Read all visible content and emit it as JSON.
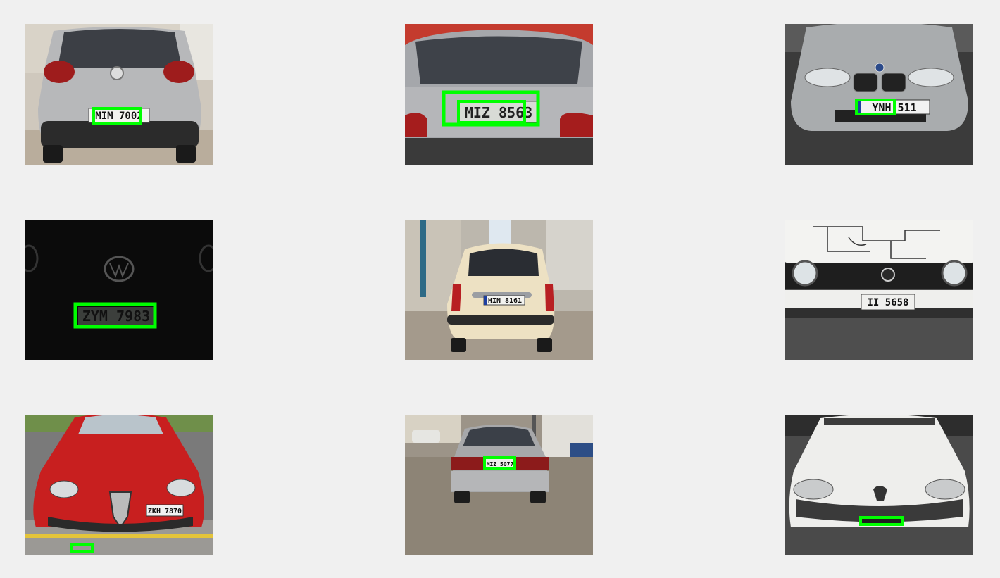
{
  "colors": {
    "background": "#f0f0f0",
    "detection_box": "#00ff00"
  },
  "images": [
    {
      "plate_text": "MIM 7002",
      "detection_shown": true
    },
    {
      "plate_text": "MIZ 8563",
      "detection_shown": true
    },
    {
      "plate_text": "YNH 511",
      "detection_shown": true
    },
    {
      "plate_text": "ZYM 7983",
      "detection_shown": true
    },
    {
      "plate_text": "HIN 8161",
      "detection_shown": false
    },
    {
      "plate_text": "II 5658",
      "detection_shown": false
    },
    {
      "plate_text": "ZKH 7870",
      "detection_shown": true
    },
    {
      "plate_text": "MIZ 5077",
      "detection_shown": true
    },
    {
      "plate_text": "",
      "detection_shown": true
    }
  ]
}
